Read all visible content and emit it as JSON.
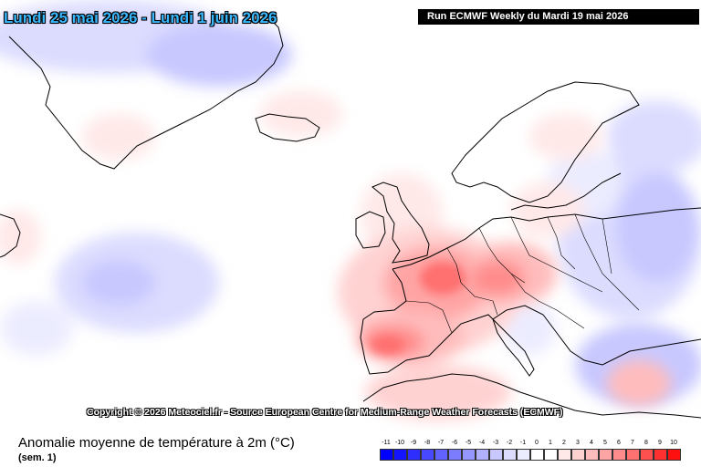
{
  "header": {
    "date_range": "Lundi 25 mai 2026 - Lundi 1 juin 2026",
    "run_info": "Run ECMWF Weekly du Mardi 19 mai 2026"
  },
  "map": {
    "copyright": "Copyright © 2026 Meteociel.fr - Source European Centre for Medium-Range Weather Forecasts (ECMWF)"
  },
  "footer": {
    "title": "Anomalie moyenne de température à 2m (°C)",
    "subtitle": "(sem. 1)"
  },
  "legend": {
    "labels": [
      "-11",
      "-10",
      "-9",
      "-8",
      "-7",
      "-6",
      "-5",
      "-4",
      "-3",
      "-2",
      "-1",
      "0",
      "1",
      "2",
      "3",
      "4",
      "5",
      "6",
      "7",
      "8",
      "9",
      "10"
    ],
    "colors": [
      "#0000ff",
      "#1414ff",
      "#2e2eff",
      "#4848ff",
      "#6262ff",
      "#7c7cff",
      "#9696ff",
      "#b0b0ff",
      "#c8c8ff",
      "#dcdcff",
      "#ececff",
      "#ffffff",
      "#ffffff",
      "#ffe8e8",
      "#ffd2d2",
      "#ffbcbc",
      "#ffa4a4",
      "#ff8c8c",
      "#ff7070",
      "#ff5050",
      "#ff3030",
      "#ff1010"
    ]
  }
}
